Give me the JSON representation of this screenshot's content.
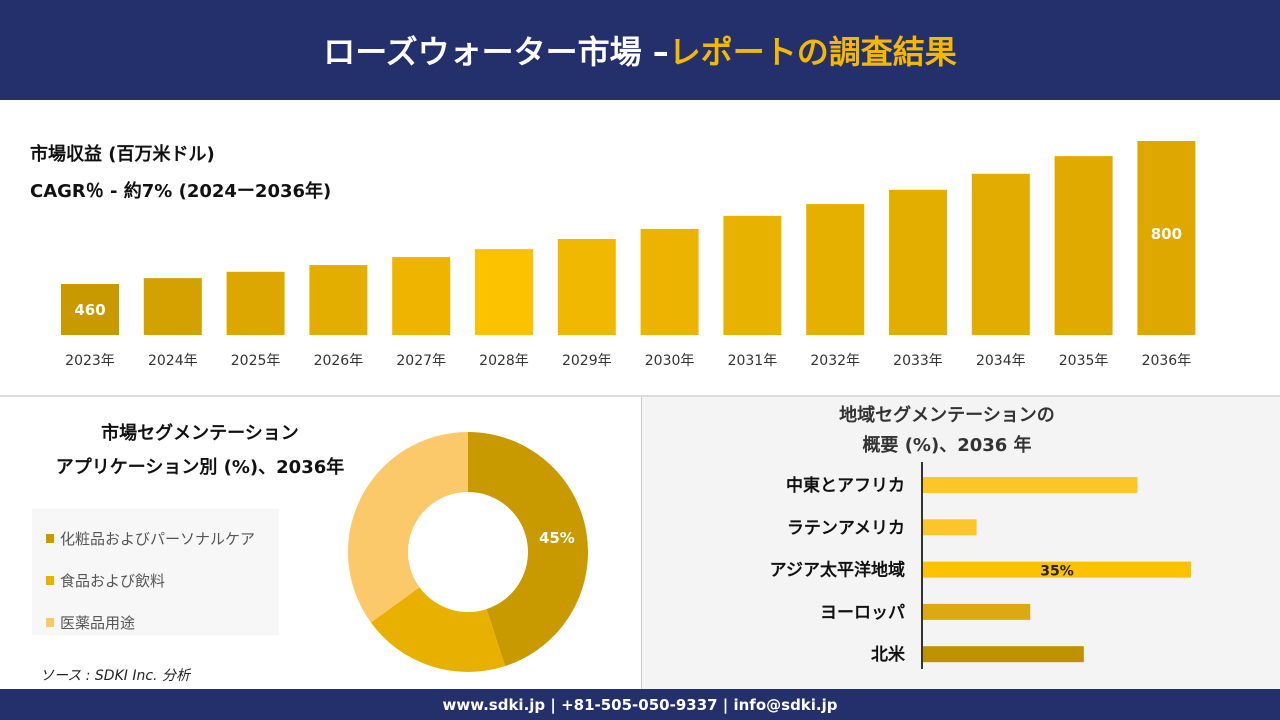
{
  "header": {
    "title_main": "ローズウォーター市場 –",
    "title_accent": "レポートの調査結果"
  },
  "colors": {
    "navy": "#24306b",
    "gold_dark": "#c89a00",
    "gold": "#e8b000",
    "gold_bright": "#fcc200",
    "gold_light": "#fcc96a"
  },
  "revenue": {
    "title": "市場収益 (百万米ドル)",
    "cagr": "CAGR％ - 約7% (2024ー2036年)"
  },
  "chart_data": [
    {
      "type": "bar",
      "categories": [
        "2023年",
        "2024年",
        "2025年",
        "2026年",
        "2027年",
        "2028年",
        "2029年",
        "2030年",
        "2031年",
        "2032年",
        "2033年",
        "2034年",
        "2035年",
        "2036年"
      ],
      "values": [
        460,
        474,
        489,
        505,
        524,
        543,
        567,
        591,
        622,
        650,
        684,
        722,
        764,
        800
      ],
      "data_labels": {
        "0": "460",
        "13": "800"
      }
    },
    {
      "type": "pie",
      "title_line1": "市場セグメンテーション",
      "title_line2": "アプリケーション別 (%)、2036年",
      "categories": [
        "化粧品およびパーソナルケア",
        "食品および飲料",
        "医薬品用途"
      ],
      "values": [
        45,
        20,
        35
      ],
      "colors": [
        "#c89a00",
        "#e8b000",
        "#fcc96a"
      ],
      "data_labels": [
        "45%",
        "",
        ""
      ]
    },
    {
      "type": "bar",
      "orientation": "horizontal",
      "title_line1": "地域セグメンテーションの",
      "title_line2": "概要 (%)、2036 年",
      "categories": [
        "中東とアフリカ",
        "ラテンアメリカ",
        "アジア太平洋地域",
        "ヨーロッパ",
        "北米"
      ],
      "values": [
        28,
        7,
        35,
        14,
        21
      ],
      "colors": [
        "#fcc62a",
        "#fcc62a",
        "#fcc200",
        "#dcaa10",
        "#c09200"
      ],
      "data_labels": [
        "",
        "",
        "35%",
        "",
        ""
      ]
    }
  ],
  "source": "ソース : SDKI Inc. 分析",
  "footer": "www.sdki.jp | +81-505-050-9337 | info@sdki.jp"
}
